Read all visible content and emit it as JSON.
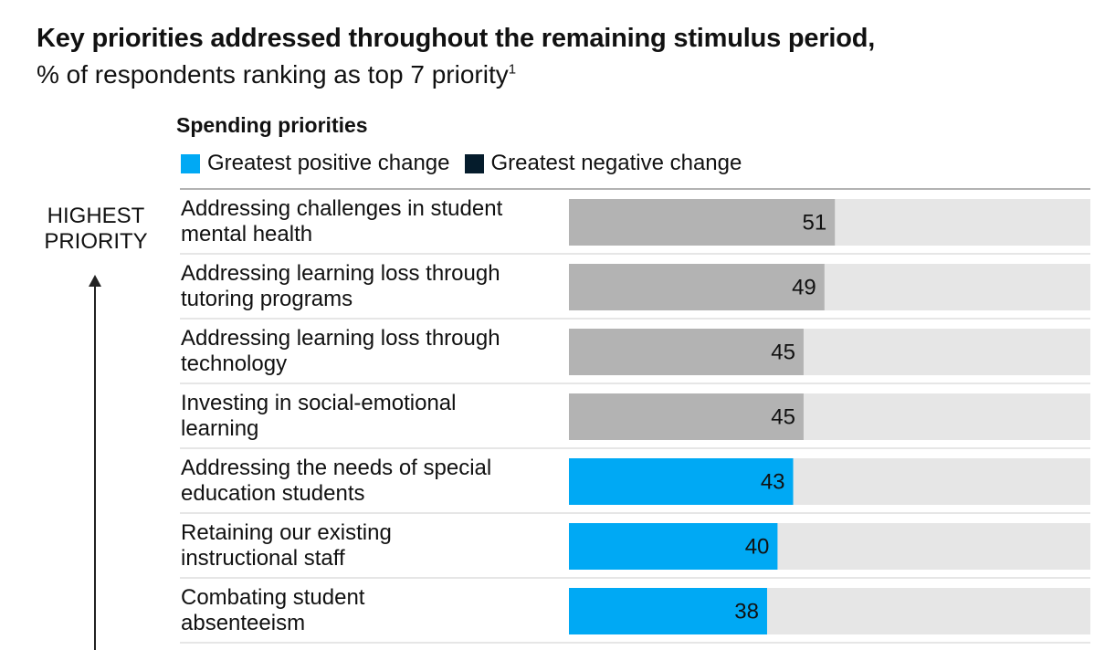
{
  "header": {
    "title": "Key priorities addressed throughout the remaining stimulus period,",
    "subtitle": "% of respondents ranking as top 7 priority",
    "subtitle_footnote": "1",
    "section_title": "Spending priorities"
  },
  "legend": [
    {
      "label": "Greatest positive change",
      "color": "#00a9f4"
    },
    {
      "label": "Greatest negative change",
      "color": "#051c2c"
    }
  ],
  "axis_label": {
    "line1": "HIGHEST",
    "line2": "PRIORITY"
  },
  "chart_data": {
    "type": "bar",
    "orientation": "horizontal",
    "categories": [
      [
        "Addressing challenges in student",
        "mental health"
      ],
      [
        "Addressing learning loss through",
        "tutoring programs"
      ],
      [
        "Addressing learning loss through",
        "technology"
      ],
      [
        "Investing in social-emotional",
        "learning"
      ],
      [
        "Addressing the needs of special",
        "education students"
      ],
      [
        "Retaining our existing",
        "instructional staff"
      ],
      [
        "Combating student",
        "absenteeism"
      ]
    ],
    "values": [
      51,
      49,
      45,
      45,
      43,
      40,
      38
    ],
    "display_labels": [
      "51",
      "49",
      "45",
      "45",
      "43",
      "40",
      "38"
    ],
    "bar_colors": [
      "#b3b3b3",
      "#b3b3b3",
      "#b3b3b3",
      "#b3b3b3",
      "#00a9f4",
      "#00a9f4",
      "#00a9f4"
    ],
    "track_color": "#e6e6e6",
    "xlim": [
      0,
      100
    ],
    "grid": false
  }
}
